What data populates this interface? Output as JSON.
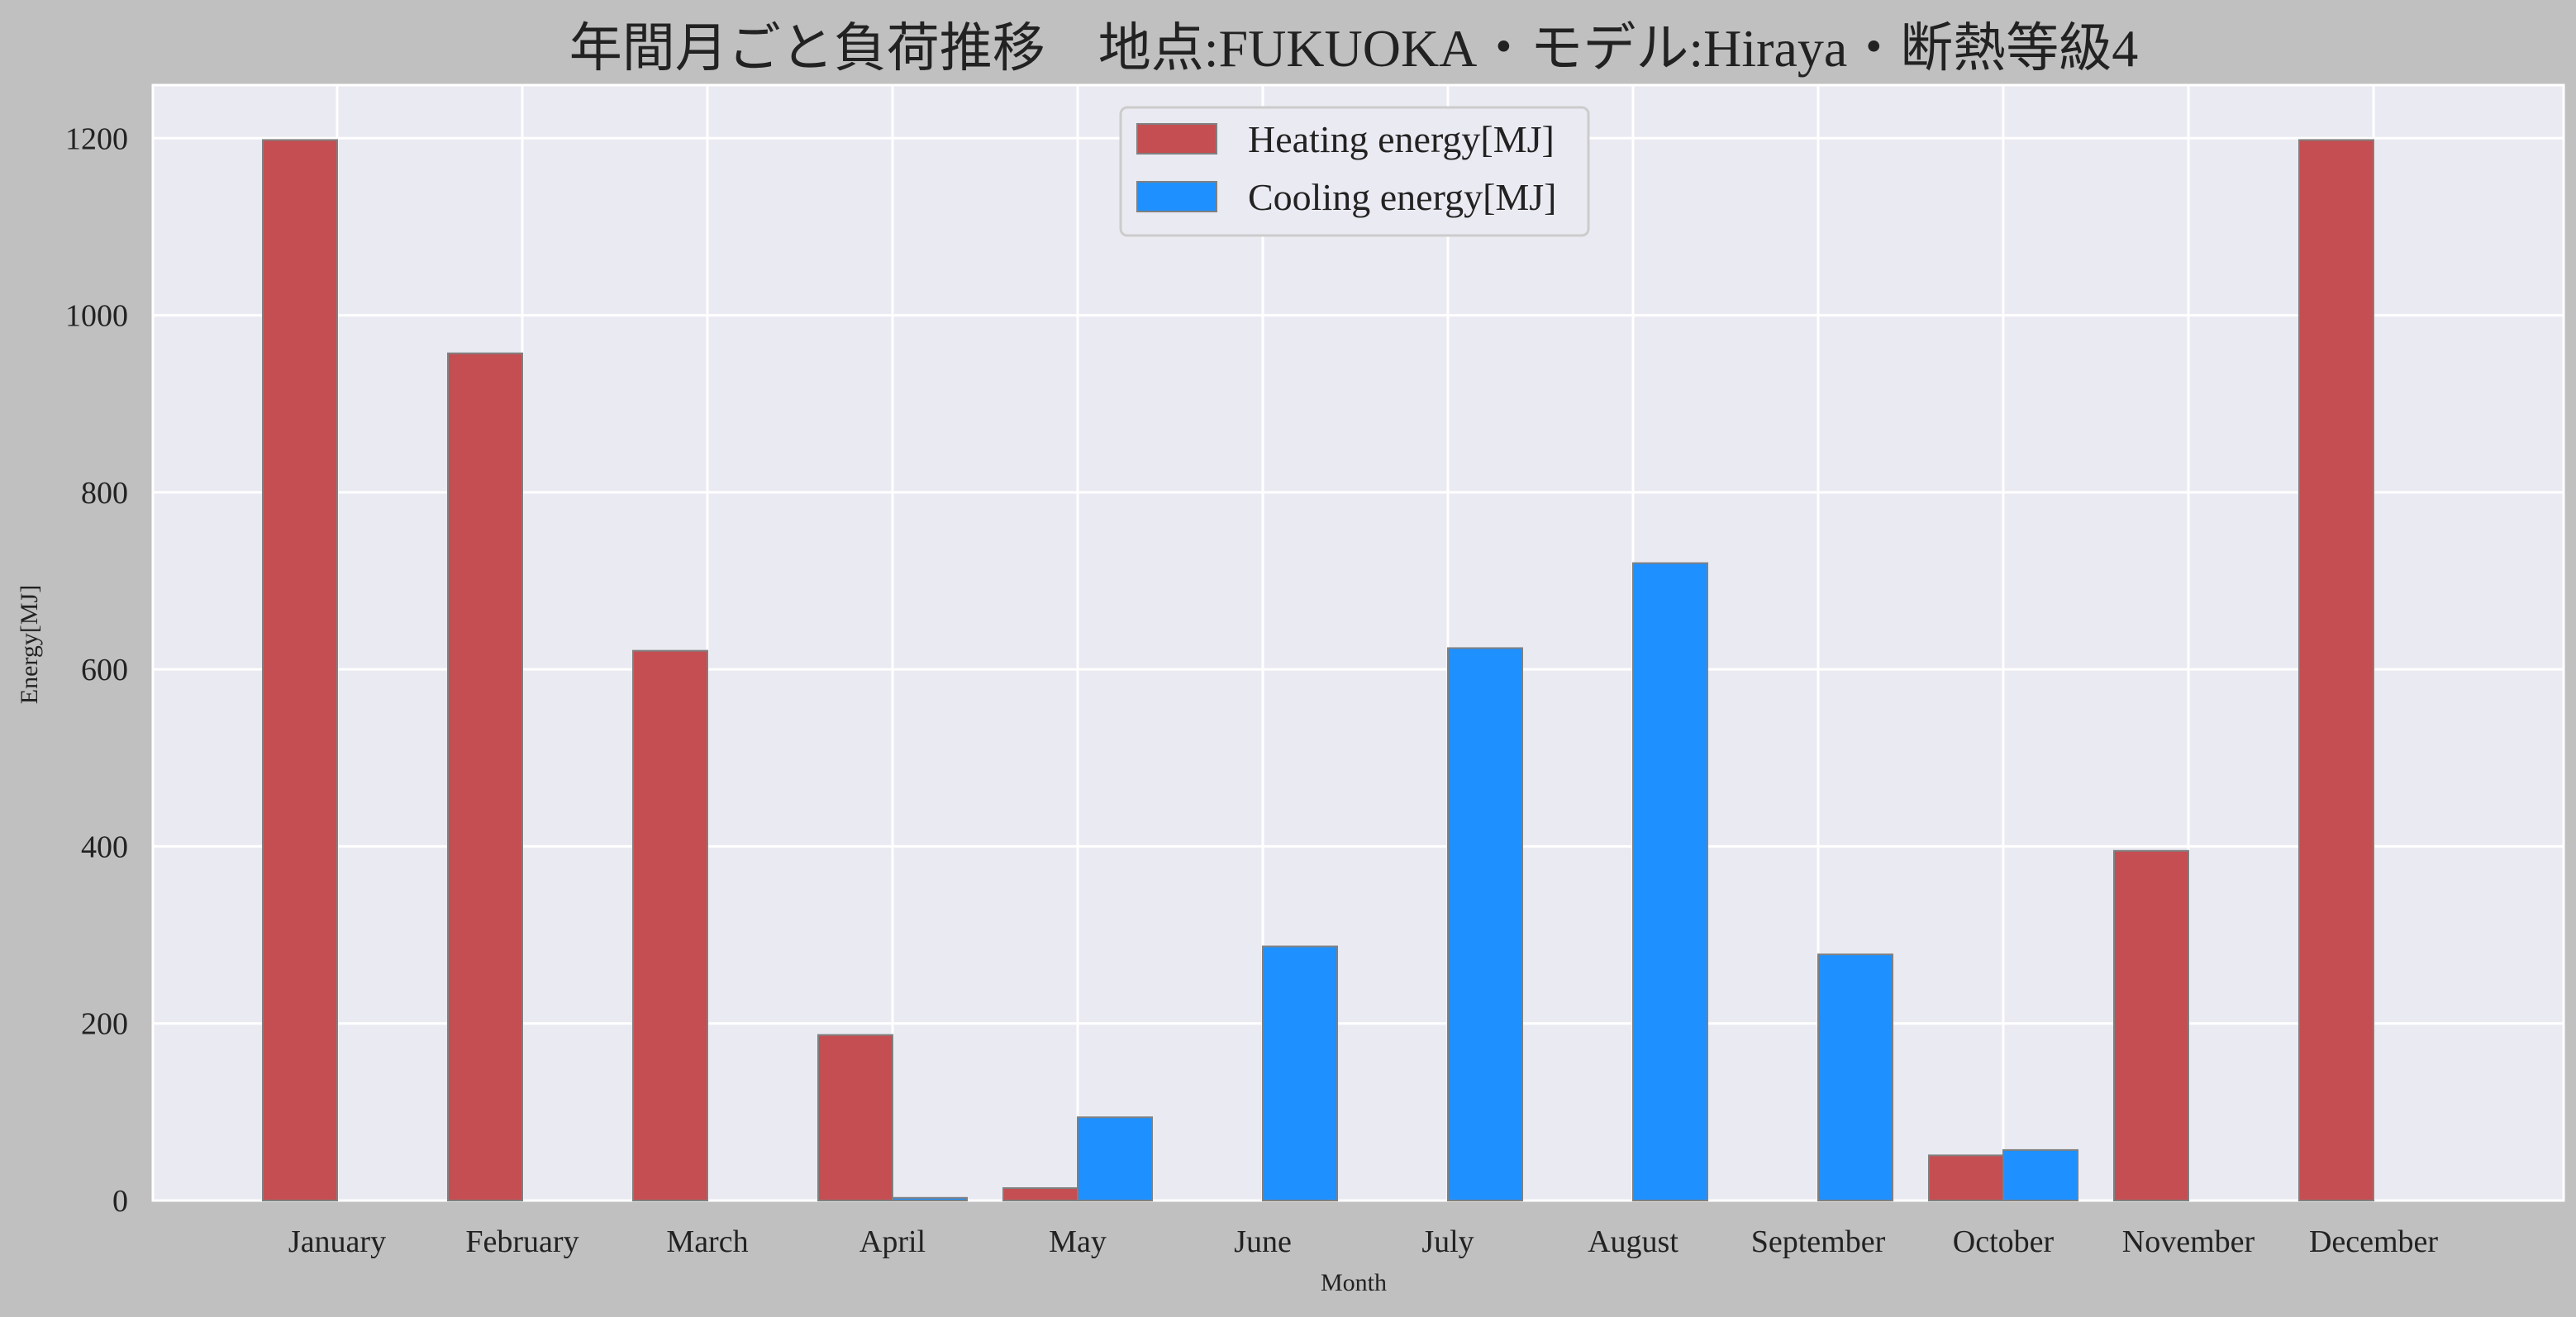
{
  "chart_data": {
    "type": "bar",
    "title": "年間月ごと負荷推移　地点:FUKUOKA・モデル:Hiraya・断熱等級4",
    "xlabel": "Month",
    "ylabel": "Energy[MJ]",
    "categories": [
      "January",
      "February",
      "March",
      "April",
      "May",
      "June",
      "July",
      "August",
      "September",
      "October",
      "November",
      "December"
    ],
    "series": [
      {
        "name": "Heating energy[MJ]",
        "color": "#c44e52",
        "values": [
          1198,
          957,
          621,
          187,
          14,
          0,
          0,
          0,
          0,
          51,
          395,
          1198
        ]
      },
      {
        "name": "Cooling energy[MJ]",
        "color": "#1e90ff",
        "values": [
          0,
          0,
          0,
          3,
          94,
          287,
          624,
          720,
          278,
          57,
          0,
          0
        ]
      }
    ],
    "ylim": [
      0,
      1260
    ],
    "yticks": [
      0,
      200,
      400,
      600,
      800,
      1000,
      1200
    ],
    "grid": true,
    "legend_position": "top-center",
    "colors": {
      "figure_bg": "#c0c0c0",
      "plot_bg": "#eaeaf2",
      "grid": "#ffffff",
      "bar_edge": "#808080"
    }
  }
}
